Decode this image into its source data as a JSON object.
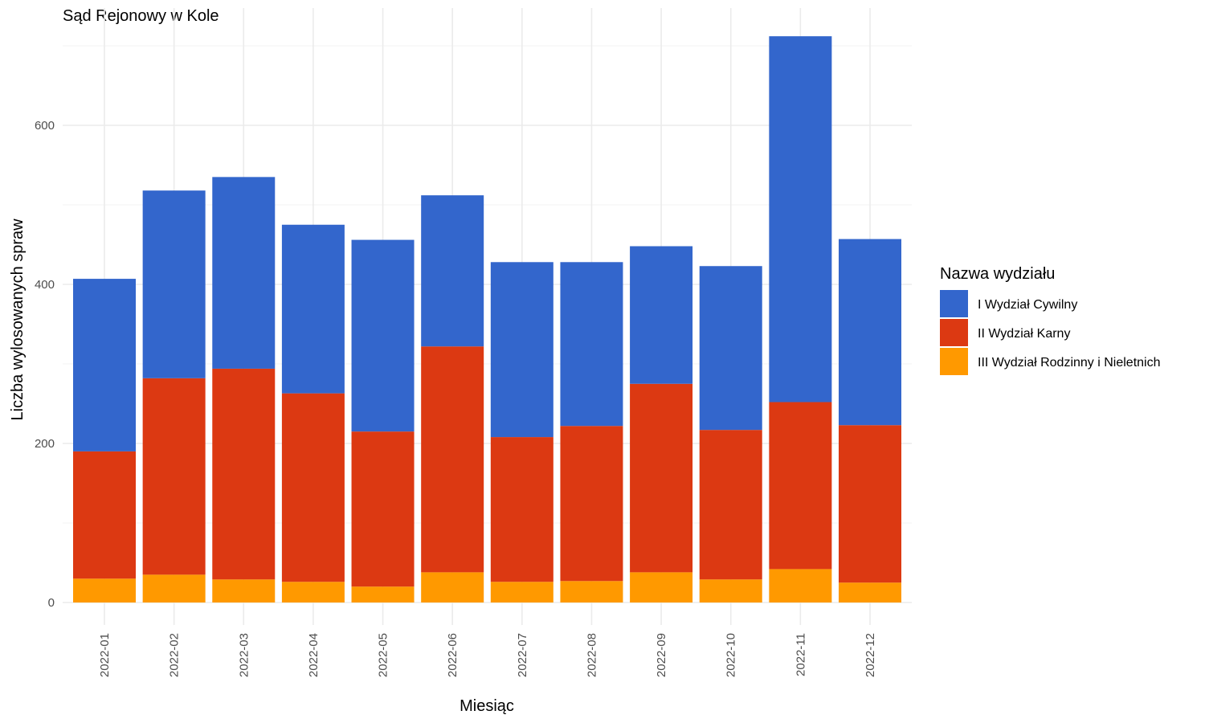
{
  "chart_data": {
    "type": "bar",
    "stacked": true,
    "title": "Sąd Rejonowy w Kole",
    "xlabel": "Miesiąc",
    "ylabel": "Liczba wylosowanych spraw",
    "ylim": [
      0,
      720
    ],
    "yticks": [
      0,
      200,
      400,
      600
    ],
    "grid": true,
    "legend_position": "right",
    "legend_title": "Nazwa wydziału",
    "categories": [
      "2022-01",
      "2022-02",
      "2022-03",
      "2022-04",
      "2022-05",
      "2022-06",
      "2022-07",
      "2022-08",
      "2022-09",
      "2022-10",
      "2022-11",
      "2022-12"
    ],
    "series": [
      {
        "name": "III Wydział Rodzinny i Nieletnich",
        "color": "#ff9900",
        "values": [
          30,
          35,
          29,
          26,
          20,
          38,
          26,
          27,
          38,
          29,
          42,
          25
        ]
      },
      {
        "name": "II Wydział Karny",
        "color": "#dc3912",
        "values": [
          160,
          247,
          265,
          237,
          195,
          284,
          182,
          195,
          237,
          188,
          210,
          198
        ]
      },
      {
        "name": "I Wydział Cywilny",
        "color": "#3366cc",
        "values": [
          217,
          236,
          241,
          212,
          241,
          190,
          220,
          206,
          173,
          206,
          460,
          234
        ]
      }
    ],
    "legend_order": [
      "I Wydział Cywilny",
      "II Wydział Karny",
      "III Wydział Rodzinny i Nieletnich"
    ]
  }
}
